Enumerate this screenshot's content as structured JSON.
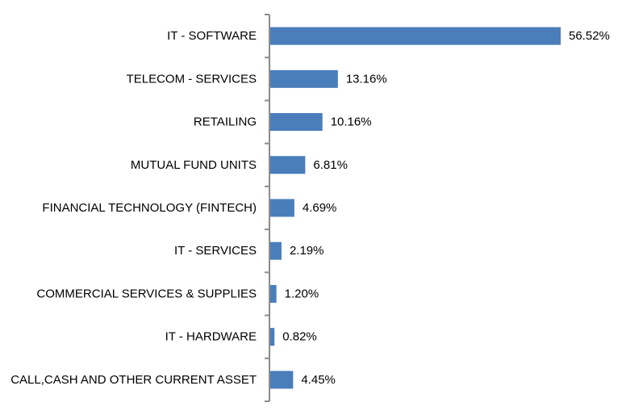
{
  "chart_data": {
    "type": "bar",
    "orientation": "horizontal",
    "categories": [
      "IT - SOFTWARE",
      "TELECOM - SERVICES",
      "RETAILING",
      "MUTUAL FUND UNITS",
      "FINANCIAL TECHNOLOGY (FINTECH)",
      "IT - SERVICES",
      "COMMERCIAL SERVICES & SUPPLIES",
      "IT - HARDWARE",
      "CALL,CASH AND OTHER CURRENT ASSET"
    ],
    "values": [
      56.52,
      13.16,
      10.16,
      6.81,
      4.69,
      2.19,
      1.2,
      0.82,
      4.45
    ],
    "value_labels": [
      "56.52%",
      "13.16%",
      "10.16%",
      "6.81%",
      "4.69%",
      "2.19%",
      "1.20%",
      "0.82%",
      "4.45%"
    ],
    "bar_color": "#4a7ebb",
    "axis_color": "#8c8c8c",
    "grid": false,
    "legend": "none"
  }
}
